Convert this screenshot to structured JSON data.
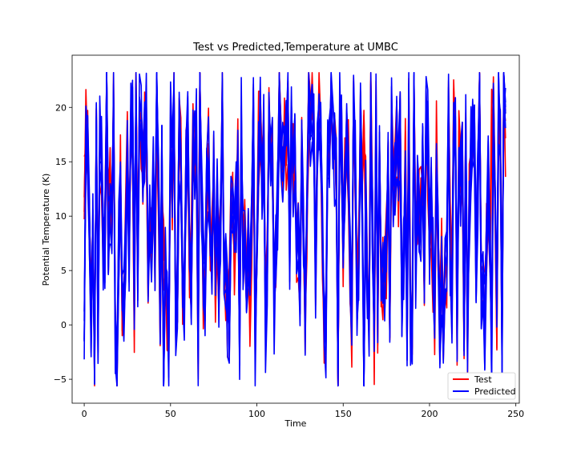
{
  "chart_data": {
    "type": "line",
    "title": "Test vs Predicted,Temperature at UMBC",
    "xlabel": "Time",
    "ylabel": "Potential Temperature (K)",
    "xlim": [
      -7,
      252
    ],
    "ylim": [
      -7.2,
      24.8
    ],
    "xticks": [
      0,
      50,
      100,
      150,
      200,
      250
    ],
    "yticks": [
      -5,
      0,
      5,
      10,
      15,
      20
    ],
    "grid": false,
    "legend_position": "lower-right",
    "n_points": 245,
    "series": [
      {
        "name": "Test",
        "color": "#ff0000",
        "x_start": 0,
        "x_end": 244,
        "peaks": [
          {
            "x": 13,
            "y": 22.2
          },
          {
            "x": 67,
            "y": 23.2
          },
          {
            "x": 166,
            "y": 22.5
          },
          {
            "x": 229,
            "y": 22.9
          },
          {
            "x": 243,
            "y": 22.6
          }
        ],
        "troughs": [
          {
            "x": 6,
            "y": -3.4
          },
          {
            "x": 19,
            "y": -4.7
          },
          {
            "x": 147,
            "y": -5.5
          },
          {
            "x": 220,
            "y": -2.0
          }
        ]
      },
      {
        "name": "Predicted",
        "color": "#0000ff",
        "x_start": 0,
        "x_end": 244,
        "peaks": [
          {
            "x": 42,
            "y": 22.7
          },
          {
            "x": 67,
            "y": 23.4
          },
          {
            "x": 229,
            "y": 23.1
          }
        ],
        "troughs": [
          {
            "x": 0,
            "y": -1.5
          },
          {
            "x": 46,
            "y": -5.3
          },
          {
            "x": 162,
            "y": -5.7
          },
          {
            "x": 236,
            "y": -2.1
          }
        ]
      }
    ]
  }
}
